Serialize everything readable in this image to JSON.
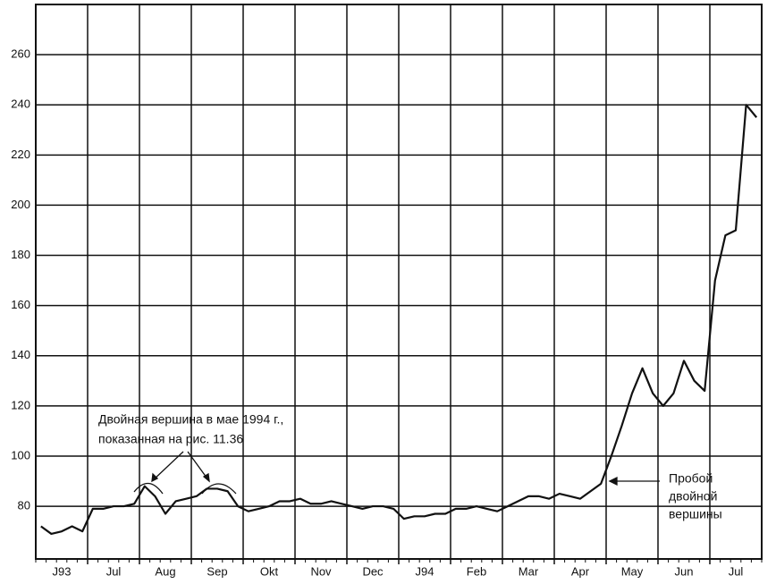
{
  "chart_data": {
    "type": "line",
    "categories": [
      null,
      null,
      "J93",
      null,
      null,
      null,
      null,
      "Jul",
      null,
      null,
      null,
      null,
      "Aug",
      null,
      null,
      null,
      null,
      "Sep",
      null,
      null,
      null,
      null,
      "Okt",
      null,
      null,
      null,
      null,
      "Nov",
      null,
      null,
      null,
      null,
      "Dec",
      null,
      null,
      null,
      null,
      "J94",
      null,
      null,
      null,
      null,
      "Feb",
      null,
      null,
      null,
      null,
      "Mar",
      null,
      null,
      null,
      null,
      "Apr",
      null,
      null,
      null,
      null,
      "May",
      null,
      null,
      null,
      null,
      "Jun",
      null,
      null,
      null,
      null,
      "Jul",
      null,
      null
    ],
    "series": [
      {
        "color": "#111111",
        "values": [
          72,
          69,
          70,
          72,
          70,
          79,
          79,
          80,
          80,
          81,
          88,
          84,
          77,
          82,
          83,
          84,
          87,
          87,
          86,
          80,
          78,
          79,
          80,
          82,
          82,
          83,
          81,
          81,
          82,
          81,
          80,
          79,
          80,
          80,
          79,
          75,
          76,
          76,
          77,
          77,
          79,
          79,
          80,
          79,
          78,
          80,
          82,
          84,
          84,
          83,
          85,
          84,
          83,
          86,
          89,
          100,
          112,
          125,
          135,
          125,
          120,
          125,
          138,
          130,
          126,
          170,
          188,
          190,
          240,
          235
        ]
      }
    ],
    "ylim": [
      59,
      280
    ],
    "yticks": [
      80,
      100,
      120,
      140,
      160,
      180,
      200,
      220,
      240,
      260
    ],
    "grid": true,
    "annotations": {
      "double_top": [
        "Двойная вершина в мае 1994 г.,",
        "показанная на рис. 11.36"
      ],
      "breakout": [
        "Пробой",
        "двойной",
        "вершины"
      ]
    }
  }
}
